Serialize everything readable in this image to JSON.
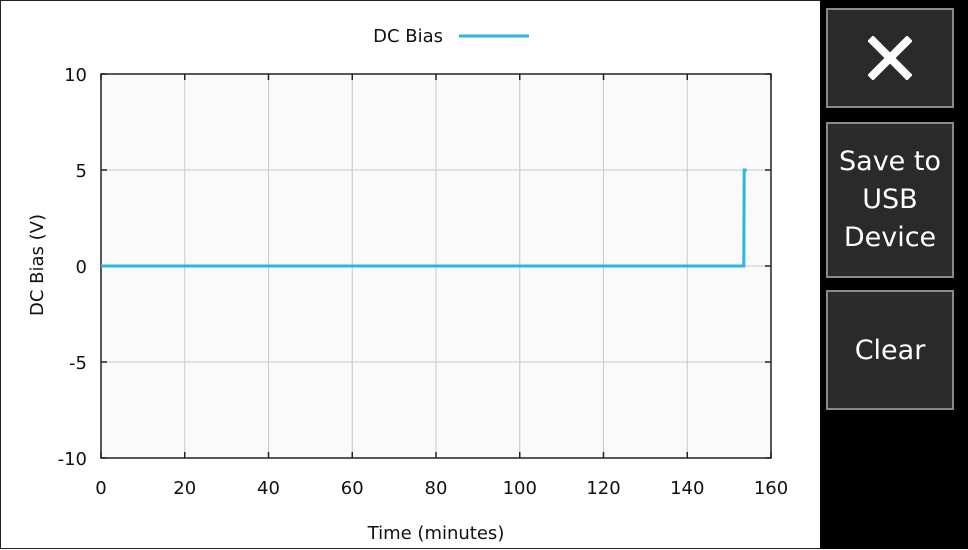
{
  "chart_data": {
    "type": "line",
    "xlabel": "Time (minutes)",
    "ylabel": "DC Bias (V)",
    "xlim": [
      0,
      160
    ],
    "ylim": [
      -10,
      10
    ],
    "x_ticks": [
      0,
      20,
      40,
      60,
      80,
      100,
      120,
      140,
      160
    ],
    "y_ticks": [
      10,
      5,
      0,
      -5,
      -10
    ],
    "grid": true,
    "legend_position": "top-center",
    "series": [
      {
        "name": "DC Bias",
        "color": "#29b6e6",
        "x": [
          0,
          153.5,
          153.6,
          154.2
        ],
        "y": [
          0,
          0,
          5,
          5
        ]
      }
    ]
  },
  "buttons": {
    "close_icon": "close-icon",
    "save_label": "Save to\nUSB\nDevice",
    "clear_label": "Clear"
  }
}
